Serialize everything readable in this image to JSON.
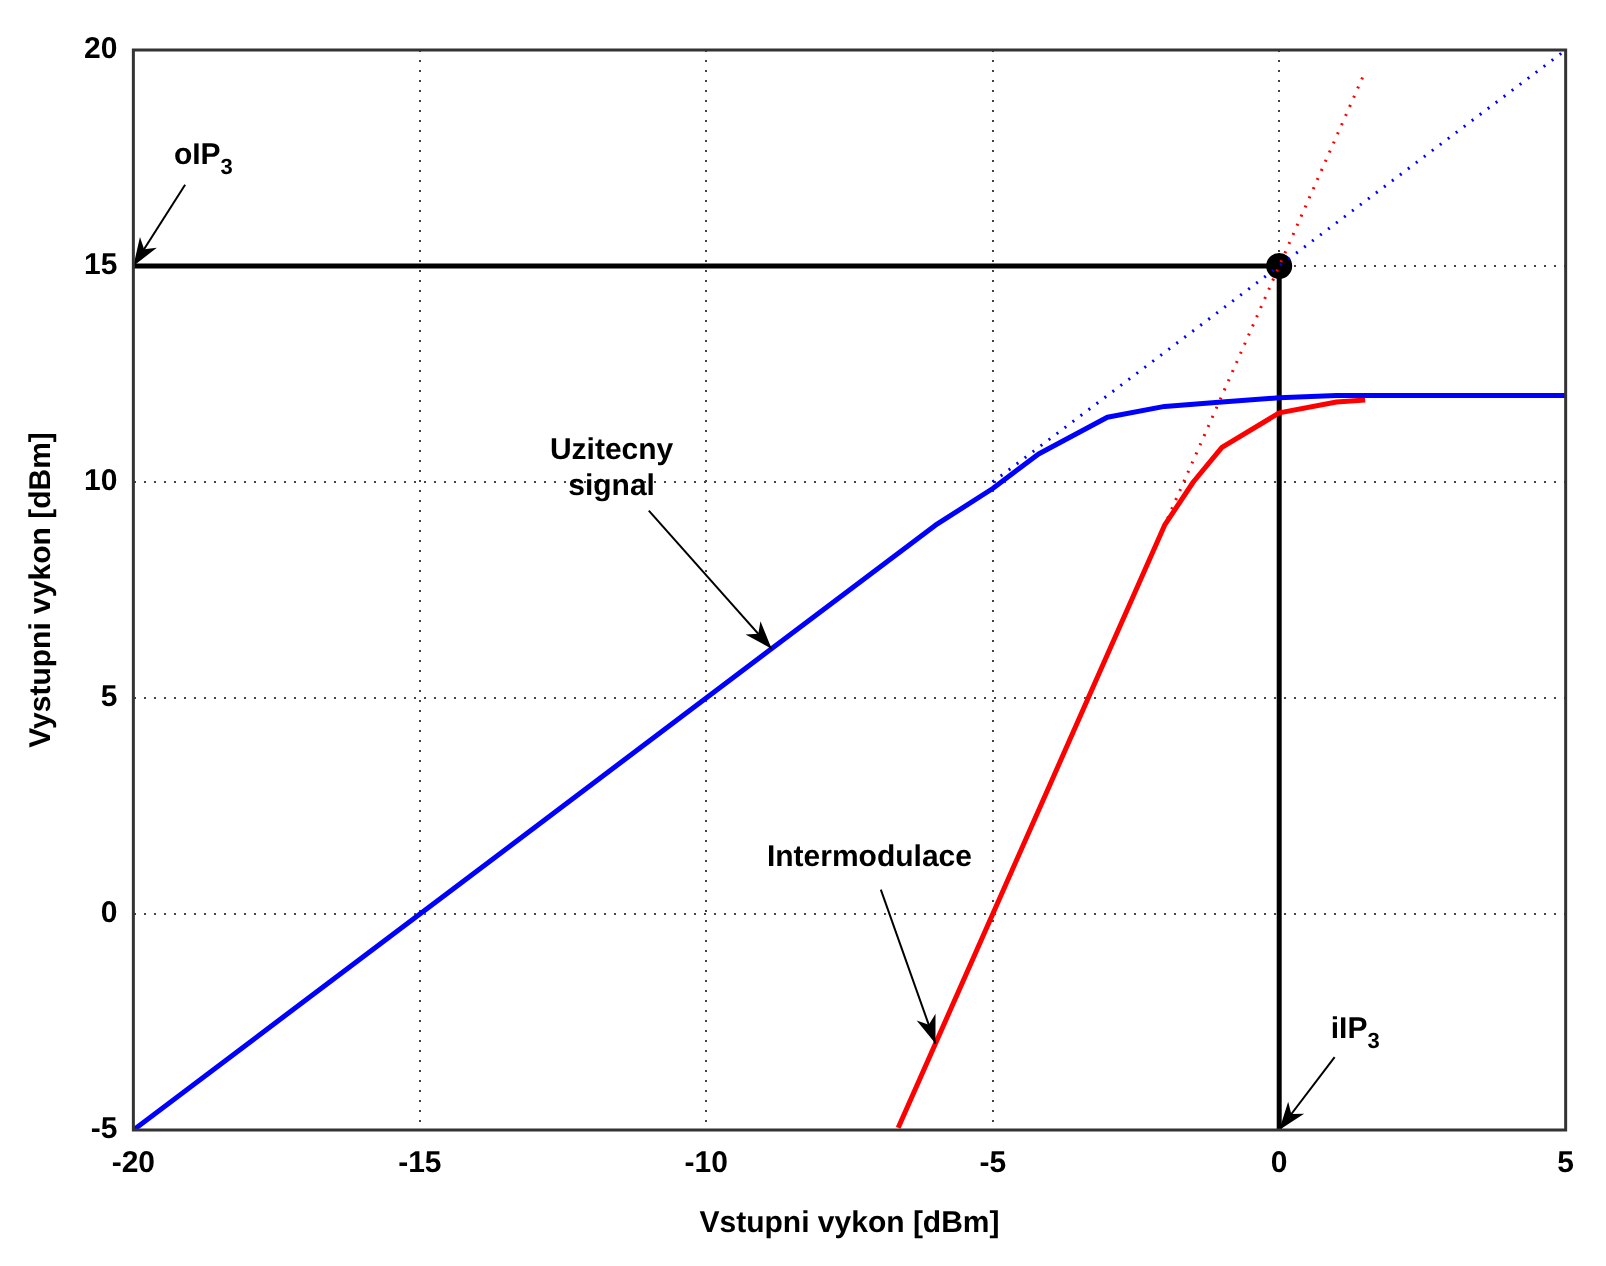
{
  "chart_data": {
    "type": "line",
    "xlabel": "Vstupni vykon [dBm]",
    "ylabel": "Vystupni vykon [dBm]",
    "xlim": [
      -20,
      5
    ],
    "xticks": [
      -20,
      -15,
      -10,
      -5,
      0,
      5
    ],
    "ylim": [
      -5,
      20
    ],
    "yticks": [
      -5,
      0,
      5,
      10,
      15,
      20
    ],
    "grid": true,
    "legend": false,
    "series": [
      {
        "color": "#0000ff",
        "line_style": "solid",
        "x": [
          -20,
          -6,
          -5,
          -4.2,
          -3,
          -2,
          -1,
          0,
          1,
          5
        ],
        "values": [
          -5,
          9,
          9.85,
          10.65,
          11.5,
          11.75,
          11.85,
          11.95,
          12,
          12
        ]
      },
      {
        "color": "#ff0000",
        "line_style": "solid",
        "x": [
          -6.65,
          -5,
          -4,
          -3,
          -2,
          -1.5,
          -1,
          0,
          1,
          1.5
        ],
        "values": [
          -4.95,
          0,
          3,
          6,
          9,
          10,
          10.8,
          11.6,
          11.85,
          11.9
        ]
      },
      {
        "color": "#0000ff",
        "line_style": "dotted",
        "x": [
          -5,
          5
        ],
        "values": [
          10,
          20
        ]
      },
      {
        "color": "#ff0000",
        "line_style": "dotted",
        "x": [
          -2.3,
          1.5
        ],
        "values": [
          8.1,
          19.5
        ]
      },
      {
        "color": "#000000",
        "line_style": "solid",
        "x": [
          -20,
          0
        ],
        "values": [
          15,
          15
        ]
      },
      {
        "color": "#000000",
        "line_style": "solid",
        "x": [
          0,
          0
        ],
        "values": [
          -5,
          15
        ]
      },
      {
        "type": "scatter",
        "color": "#000000",
        "marker": "circle",
        "x": [
          0
        ],
        "values": [
          15
        ]
      }
    ],
    "annotations": [
      {
        "text": "oIP$_{3}$",
        "x": -20,
        "y": 15
      },
      {
        "text": "iIP$_{3}$",
        "x": 0,
        "y": -5
      },
      {
        "text": "Uzitecny\nsignal",
        "x": -8.86,
        "y": 6.14
      },
      {
        "text": "Intermodulace",
        "x": -6,
        "y": -3
      }
    ]
  }
}
